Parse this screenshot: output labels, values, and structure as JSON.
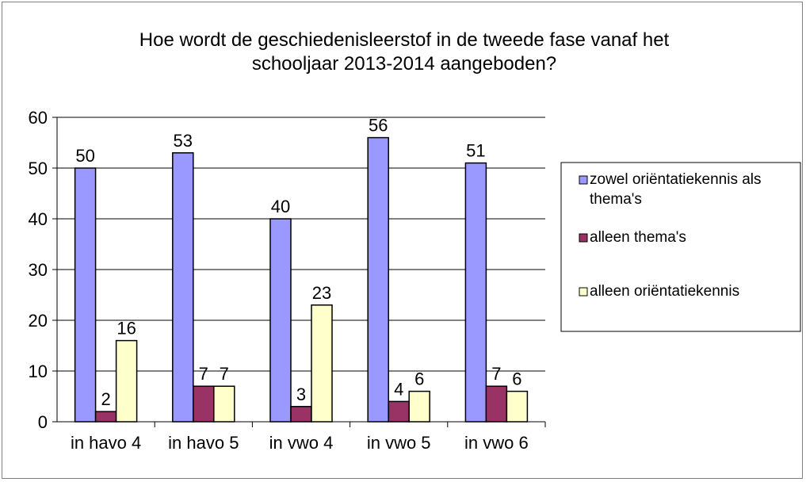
{
  "chart_data": {
    "type": "bar",
    "title": "Hoe wordt de geschiedenisleerstof in de tweede fase vanaf het schooljaar 2013-2014 aangeboden?",
    "title_lines": [
      "Hoe wordt de geschiedenisleerstof in de tweede fase vanaf het",
      "schooljaar 2013-2014 aangeboden?"
    ],
    "categories": [
      "in havo 4",
      "in havo 5",
      "in vwo 4",
      "in vwo 5",
      "in vwo 6"
    ],
    "series": [
      {
        "name": "zowel oriëntatiekennis als thema's",
        "name_lines": [
          "zowel oriëntatiekennis als",
          "thema's"
        ],
        "color": "#9999ff",
        "values": [
          50,
          53,
          40,
          56,
          51
        ]
      },
      {
        "name": "alleen thema's",
        "name_lines": [
          "alleen thema's"
        ],
        "color": "#993366",
        "values": [
          2,
          7,
          3,
          4,
          7
        ]
      },
      {
        "name": "alleen oriëntatiekennis",
        "name_lines": [
          "alleen oriëntatiekennis"
        ],
        "color": "#ffffcc",
        "values": [
          16,
          7,
          23,
          6,
          6
        ]
      }
    ],
    "ylim": [
      0,
      60
    ],
    "yticks": [
      0,
      10,
      20,
      30,
      40,
      50,
      60
    ],
    "xlabel": "",
    "ylabel": "",
    "grid": true,
    "legend_position": "right",
    "data_labels": true
  }
}
